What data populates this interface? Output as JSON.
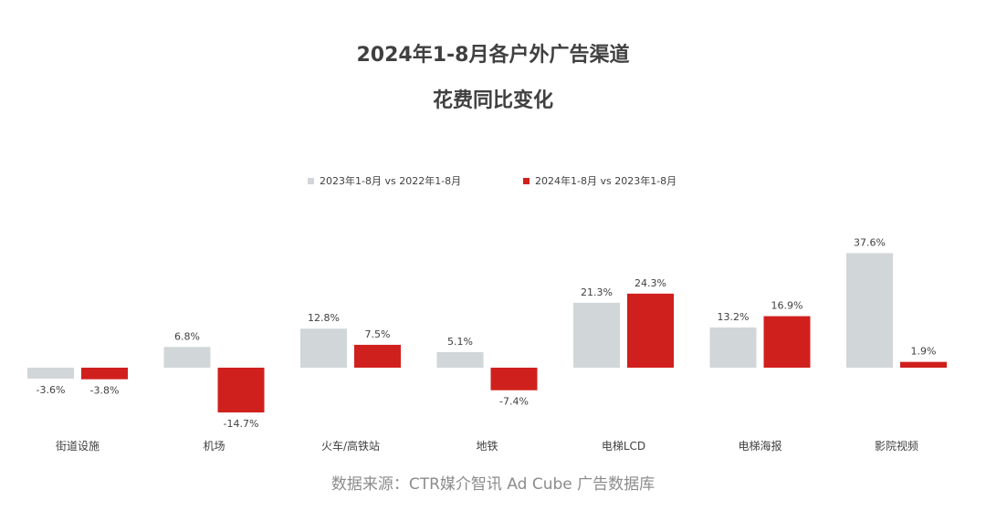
{
  "title_line1": "2024年1-8月各户外广告渠道",
  "title_line2": "花费同比变化",
  "source": "数据来源：CTR媒介智讯 Ad Cube 广告数据库",
  "colors": {
    "series1": "#d1d6d9",
    "series2": "#d0201d",
    "text": "#404040",
    "source": "#8c8c8c"
  },
  "chart_data": {
    "type": "bar",
    "categories": [
      "街道设施",
      "机场",
      "火车/高铁站",
      "地铁",
      "电梯LCD",
      "电梯海报",
      "影院视频"
    ],
    "series": [
      {
        "name": "2023年1-8月 vs 2022年1-8月",
        "values": [
          -3.6,
          6.8,
          12.8,
          5.1,
          21.3,
          13.2,
          37.6
        ],
        "labels": [
          "-3.6%",
          "6.8%",
          "12.8%",
          "5.1%",
          "21.3%",
          "13.2%",
          "37.6%"
        ]
      },
      {
        "name": "2024年1-8月 vs 2023年1-8月",
        "values": [
          -3.8,
          -14.7,
          7.5,
          -7.4,
          24.3,
          16.9,
          1.9
        ],
        "labels": [
          "-3.8%",
          "-14.7%",
          "7.5%",
          "-7.4%",
          "24.3%",
          "16.9%",
          "1.9%"
        ]
      }
    ],
    "legend_position": "top",
    "grid": false
  }
}
